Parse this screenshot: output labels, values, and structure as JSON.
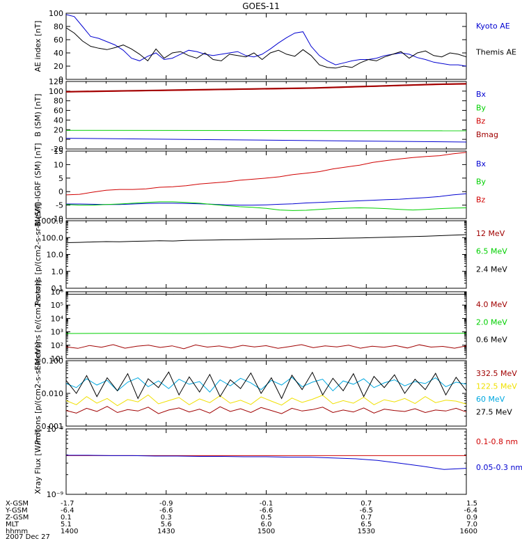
{
  "title": "GOES-11",
  "date_label": "2007 Dec 27",
  "colors": {
    "black": "#000000",
    "blue": "#0000d0",
    "green": "#00d000",
    "red": "#d00000",
    "darkred": "#a00000",
    "yellow": "#f0e000",
    "cyan": "#00a8e0"
  },
  "chart_data": [
    {
      "type": "line",
      "ylabel": "AE index [nT]",
      "ylim": [
        0,
        100
      ],
      "y_ticks": [
        "0",
        "20",
        "40",
        "60",
        "80",
        "100"
      ],
      "series": [
        {
          "name": "Kyoto AE",
          "color": "blue",
          "values": [
            98,
            95,
            80,
            65,
            62,
            57,
            52,
            44,
            32,
            28,
            35,
            40,
            30,
            32,
            38,
            44,
            42,
            38,
            36,
            38,
            40,
            42,
            36,
            34,
            38,
            46,
            55,
            63,
            70,
            72,
            50,
            36,
            28,
            22,
            25,
            28,
            30,
            30,
            32,
            36,
            38,
            40,
            38,
            33,
            30,
            26,
            24,
            22,
            22,
            20
          ]
        },
        {
          "name": "Themis AE",
          "color": "black",
          "values": [
            78,
            70,
            58,
            50,
            47,
            45,
            48,
            52,
            46,
            38,
            28,
            46,
            32,
            40,
            42,
            36,
            32,
            40,
            30,
            28,
            38,
            36,
            34,
            40,
            30,
            40,
            44,
            38,
            35,
            45,
            36,
            22,
            18,
            17,
            20,
            18,
            25,
            30,
            28,
            34,
            38,
            42,
            32,
            40,
            43,
            36,
            34,
            40,
            38,
            34
          ]
        }
      ]
    },
    {
      "type": "line",
      "ylabel": "B (SM) [nT]",
      "ylim": [
        -20,
        125
      ],
      "y_ticks": [
        "-20",
        "0",
        "20",
        "40",
        "60",
        "80",
        "100",
        "120"
      ],
      "series": [
        {
          "name": "Bx",
          "color": "blue",
          "values": [
            3,
            -5
          ]
        },
        {
          "name": "By",
          "color": "green",
          "values": [
            20,
            19
          ]
        },
        {
          "name": "Bz",
          "color": "red",
          "values": [
            102,
            103,
            104,
            105,
            106,
            107,
            108,
            109,
            110,
            112,
            114,
            116,
            118,
            119
          ]
        },
        {
          "name": "Bmag",
          "color": "darkred",
          "values": [
            103,
            104,
            105,
            106,
            107,
            108,
            109,
            110,
            111,
            113,
            115,
            117,
            119,
            120
          ]
        }
      ]
    },
    {
      "type": "line",
      "ylabel": "B (SM)-IGRF (SM) [nT]",
      "ylim": [
        -10,
        15
      ],
      "y_ticks": [
        "-10",
        "-5",
        "0",
        "5",
        "10",
        "15"
      ],
      "series": [
        {
          "name": "Bx",
          "color": "blue",
          "values": [
            -4.6,
            -4.6,
            -4.7,
            -4.8,
            -4.8,
            -4.6,
            -4.4,
            -4.3,
            -4.3,
            -4.4,
            -4.5,
            -4.7,
            -4.9,
            -5.0,
            -5.0,
            -4.9,
            -4.7,
            -4.5,
            -4.2,
            -4.0,
            -3.8,
            -3.6,
            -3.4,
            -3.2,
            -3.0,
            -2.8,
            -2.5,
            -2.2,
            -1.8,
            -1.2,
            -0.8
          ]
        },
        {
          "name": "By",
          "color": "green",
          "values": [
            -4.8,
            -5.0,
            -5.0,
            -4.8,
            -4.6,
            -4.3,
            -4.0,
            -3.8,
            -3.8,
            -4.0,
            -4.3,
            -4.8,
            -5.2,
            -5.6,
            -5.8,
            -6.2,
            -6.8,
            -7.0,
            -6.9,
            -6.6,
            -6.3,
            -6.1,
            -6.0,
            -6.1,
            -6.3,
            -6.6,
            -6.8,
            -6.6,
            -6.3,
            -6.1,
            -6.0
          ]
        },
        {
          "name": "Bz",
          "color": "red",
          "values": [
            -1.2,
            -1.0,
            -0.2,
            0.5,
            0.8,
            0.8,
            1.0,
            1.6,
            1.8,
            2.2,
            2.8,
            3.2,
            3.6,
            4.2,
            4.6,
            5.0,
            5.5,
            6.3,
            6.8,
            7.4,
            8.4,
            9.1,
            9.8,
            10.8,
            11.5,
            12.1,
            12.6,
            13.0,
            13.3,
            14.0,
            14.5
          ]
        }
      ]
    },
    {
      "type": "line",
      "ylabel": "Protons [p/(cm2-s-sr-MeV)]",
      "yscale": "log",
      "ylim": [
        0.1,
        1000
      ],
      "y_ticks": [
        "0.1",
        "1.0",
        "10.0",
        "100.0",
        "1000.0"
      ],
      "series": [
        {
          "name": "12 MeV",
          "color": "darkred",
          "values": []
        },
        {
          "name": "6.5 MeV",
          "color": "green",
          "values": []
        },
        {
          "name": "2.4 MeV",
          "color": "black",
          "values": [
            50,
            52,
            55,
            58,
            57,
            60,
            62,
            65,
            63,
            68,
            70,
            72,
            74,
            75,
            78,
            80,
            82,
            84,
            85,
            88,
            90,
            93,
            95,
            100,
            105,
            110,
            115,
            120,
            130,
            140,
            150
          ]
        }
      ]
    },
    {
      "type": "line",
      "ylabel": "Electrons [e/(cm2-s-sr)]",
      "yscale": "log",
      "ylim": [
        10,
        1000000
      ],
      "y_ticks": [
        "10¹",
        "10²",
        "10³",
        "10⁴",
        "10⁵",
        "10⁶"
      ],
      "series": [
        {
          "name": "4.0 MeV",
          "color": "darkred",
          "values": [
            75,
            58,
            95,
            70,
            110,
            60,
            85,
            100,
            68,
            90,
            55,
            105,
            72,
            88,
            62,
            98,
            75,
            92,
            58,
            80,
            110,
            65,
            90,
            75,
            100,
            60,
            85,
            70,
            95,
            62,
            108,
            72,
            82,
            60,
            90
          ]
        },
        {
          "name": "2.0 MeV",
          "color": "green",
          "values": [
            750,
            780,
            770,
            760,
            790,
            780,
            775,
            800,
            790,
            785
          ]
        },
        {
          "name": "0.6 MeV",
          "color": "black",
          "values": [
            650000,
            650000,
            660000,
            650000,
            660000,
            650000
          ]
        }
      ]
    },
    {
      "type": "line",
      "ylabel": "Protons [p/(cm2-s-sr-MeV)]",
      "yscale": "log",
      "ylim": [
        0.001,
        0.1
      ],
      "y_ticks": [
        "0.001",
        "0.010",
        "0.100"
      ],
      "series": [
        {
          "name": "332.5 MeV",
          "color": "darkred",
          "values": [
            0.003,
            0.0025,
            0.0035,
            0.0028,
            0.004,
            0.0026,
            0.0032,
            0.0029,
            0.0038,
            0.0024,
            0.0031,
            0.0036,
            0.0027,
            0.0033,
            0.0025,
            0.0039,
            0.0028,
            0.0034,
            0.0026,
            0.0037,
            0.003,
            0.0024,
            0.0035,
            0.0029,
            0.0032,
            0.0038,
            0.0026,
            0.0031,
            0.0027,
            0.0036,
            0.0025,
            0.0033,
            0.003,
            0.0028,
            0.0034,
            0.0026,
            0.0031,
            0.0029,
            0.0035,
            0.0027
          ]
        },
        {
          "name": "122.5 MeV",
          "color": "yellow",
          "values": [
            0.006,
            0.0045,
            0.008,
            0.005,
            0.007,
            0.0042,
            0.0065,
            0.0055,
            0.009,
            0.0048,
            0.006,
            0.0075,
            0.0045,
            0.0068,
            0.0052,
            0.0085,
            0.005,
            0.0062,
            0.0046,
            0.0078,
            0.0058,
            0.0044,
            0.0072,
            0.0053,
            0.0066,
            0.0088,
            0.0048,
            0.006,
            0.005,
            0.0076,
            0.0045,
            0.0064,
            0.0055,
            0.007,
            0.0049,
            0.008,
            0.0052,
            0.0062,
            0.0058,
            0.0047
          ]
        },
        {
          "name": "60 MeV",
          "color": "cyan",
          "values": [
            0.02,
            0.015,
            0.028,
            0.018,
            0.025,
            0.012,
            0.022,
            0.03,
            0.016,
            0.024,
            0.014,
            0.027,
            0.019,
            0.023,
            0.011,
            0.026,
            0.017,
            0.029,
            0.021,
            0.013,
            0.025,
            0.018,
            0.031,
            0.016,
            0.022,
            0.027,
            0.012,
            0.024,
            0.019,
            0.028,
            0.015,
            0.021,
            0.026,
            0.017,
            0.023,
            0.02,
            0.03,
            0.016,
            0.022,
            0.019
          ]
        },
        {
          "name": "27.5 MeV",
          "color": "black",
          "values": [
            0.025,
            0.01,
            0.035,
            0.008,
            0.03,
            0.012,
            0.04,
            0.007,
            0.028,
            0.015,
            0.045,
            0.009,
            0.032,
            0.011,
            0.038,
            0.008,
            0.026,
            0.014,
            0.042,
            0.01,
            0.03,
            0.007,
            0.036,
            0.013,
            0.044,
            0.009,
            0.029,
            0.012,
            0.04,
            0.008,
            0.033,
            0.015,
            0.037,
            0.01,
            0.027,
            0.013,
            0.041,
            0.009,
            0.031,
            0.012
          ]
        }
      ]
    },
    {
      "type": "line",
      "ylabel": "Xray Flux [W/m²]",
      "yscale": "log",
      "ylim": [
        1e-09,
        1e-08
      ],
      "y_ticks": [
        "10⁻⁹",
        "10⁻⁸"
      ],
      "series": [
        {
          "name": "0.1-0.8 nm",
          "color": "red",
          "values": [
            3.9e-09,
            3.9e-09
          ]
        },
        {
          "name": "0.05-0.3 nm",
          "color": "blue",
          "values": [
            3.95e-09,
            3.95e-09,
            3.9e-09,
            3.9e-09,
            3.85e-09,
            3.85e-09,
            3.8e-09,
            3.8e-09,
            3.75e-09,
            3.75e-09,
            3.7e-09,
            3.7e-09,
            3.6e-09,
            3.5e-09,
            3.3e-09,
            3e-09,
            2.7e-09,
            2.4e-09,
            2.5e-09
          ]
        }
      ]
    }
  ],
  "x_axis": {
    "row_labels": [
      "X-GSM",
      "Y-GSM",
      "Z-GSM",
      "MLT",
      "hhmm"
    ],
    "columns": [
      [
        "-1.7",
        "-6.4",
        "0.1",
        "5.1",
        "1400"
      ],
      [
        "-0.9",
        "-6.6",
        "0.3",
        "5.6",
        "1430"
      ],
      [
        "-0.1",
        "-6.6",
        "0.5",
        "6.0",
        "1500"
      ],
      [
        "0.7",
        "-6.5",
        "0.7",
        "6.5",
        "1530"
      ],
      [
        "1.5",
        "-6.4",
        "0.9",
        "7.0",
        "1600"
      ]
    ]
  }
}
